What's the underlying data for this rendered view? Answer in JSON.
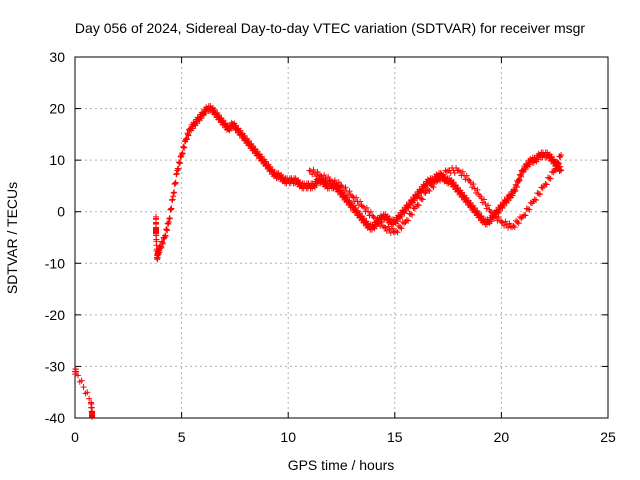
{
  "chart_data": {
    "type": "scatter",
    "title": "Day 056 of 2024, Sidereal Day-to-day VTEC variation (SDTVAR) for receiver msgr",
    "xlabel": "GPS time / hours",
    "ylabel": "SDTVAR / TECUs",
    "xlim": [
      0,
      25
    ],
    "ylim": [
      -40,
      30
    ],
    "xticks": [
      0,
      5,
      10,
      15,
      20,
      25
    ],
    "yticks": [
      -40,
      -30,
      -20,
      -10,
      0,
      10,
      20,
      30
    ],
    "grid": true,
    "marker": "+",
    "color": "#ff0000",
    "series": [
      {
        "name": "SDTVAR",
        "description_points": "main trace approximated",
        "x": [
          0.0,
          0.05,
          0.75,
          0.8,
          0.8,
          3.8,
          3.8,
          3.8,
          3.85,
          3.9,
          4.0,
          4.2,
          4.4,
          4.6,
          4.8,
          5.0,
          5.2,
          5.4,
          5.6,
          5.8,
          6.0,
          6.2,
          6.4,
          6.6,
          6.8,
          7.0,
          7.2,
          7.4,
          7.6,
          7.8,
          8.0,
          8.2,
          8.4,
          8.6,
          8.8,
          9.0,
          9.2,
          9.4,
          9.6,
          9.8,
          10.0,
          10.2,
          10.4,
          10.6,
          10.8,
          11.0,
          11.2,
          11.4,
          11.6,
          11.8,
          12.0,
          12.2,
          12.4,
          12.6,
          12.8,
          13.0,
          13.2,
          13.4,
          13.6,
          13.8,
          14.0,
          14.2,
          14.4,
          14.6,
          14.8,
          15.0,
          15.2,
          15.4,
          15.6,
          15.8,
          16.0,
          16.2,
          16.4,
          16.6,
          16.8,
          17.0,
          17.2,
          17.4,
          17.6,
          17.8,
          18.0,
          18.2,
          18.4,
          18.6,
          18.8,
          19.0,
          19.2,
          19.4,
          19.6,
          19.8,
          20.0,
          20.2,
          20.4,
          20.6,
          20.8,
          21.0,
          21.2,
          21.4,
          21.6,
          21.8,
          22.0,
          22.2,
          22.4,
          22.6,
          22.8
        ],
        "y": [
          -31,
          -31,
          -37,
          -39,
          -39.5,
          -1,
          -3.5,
          -4,
          -9,
          -8,
          -7,
          -5,
          -2,
          3,
          8,
          11,
          14,
          16,
          17,
          18,
          19,
          20,
          20,
          19,
          18,
          17,
          16,
          17,
          16,
          15,
          14,
          13,
          12,
          11,
          10,
          9,
          8,
          7,
          7,
          6,
          6,
          6,
          6,
          5,
          5,
          5,
          5,
          6,
          6,
          5,
          5,
          5,
          4,
          3,
          2,
          1,
          0,
          -1,
          -2,
          -3,
          -3,
          -2,
          -1,
          -1,
          -2,
          -2,
          -1,
          0,
          1,
          2,
          3,
          4,
          5,
          6,
          6,
          7,
          7,
          6,
          6,
          5,
          4,
          3,
          2,
          1,
          0,
          -1,
          -2,
          -2,
          -1,
          0,
          1,
          2,
          3,
          4,
          6,
          8,
          9,
          10,
          10,
          11,
          11,
          11,
          10,
          9,
          8
        ],
        "x2": [
          11.0,
          11.5,
          12.0,
          12.5,
          13.0,
          13.5,
          14.0,
          14.5,
          15.0,
          15.5,
          16.0,
          16.5,
          17.0,
          17.5,
          18.0,
          18.5,
          19.0,
          19.5,
          20.0,
          20.5,
          21.0,
          21.5,
          22.0,
          22.5,
          22.8
        ],
        "y2": [
          8,
          7,
          6,
          5,
          3,
          1,
          -1,
          -3,
          -4,
          -2,
          1,
          4,
          6,
          8,
          8,
          6,
          3,
          0,
          -2,
          -3,
          -1,
          2,
          5,
          8,
          11
        ]
      }
    ]
  }
}
